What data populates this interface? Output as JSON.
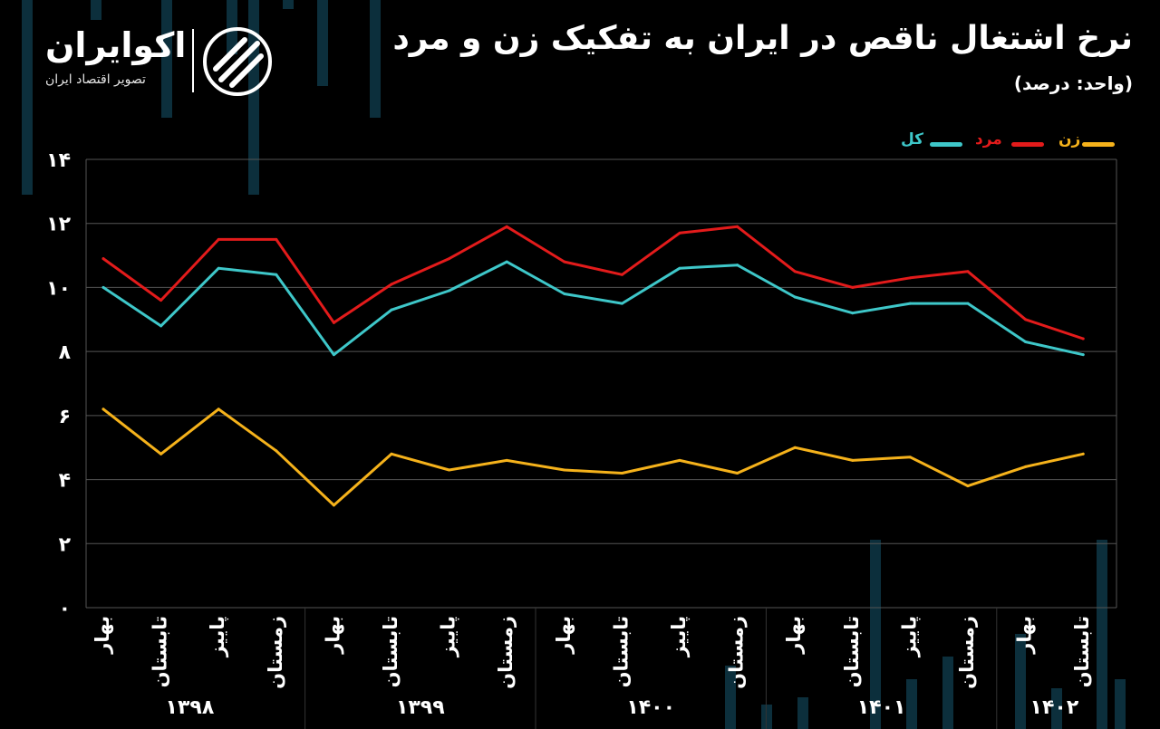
{
  "title": "نرخ اشتغال ناقص در ایران به تفکیک زن و مرد",
  "subtitle": "(واحد: درصد)",
  "brand": {
    "name": "اکوایران",
    "tagline": "تصویر اقتصاد ایران",
    "logo_icon": "ecoiran-logo-icon"
  },
  "colors": {
    "background": "#000000",
    "grid": "#555555",
    "text": "#ffffff",
    "men": "#e31b1b",
    "total": "#3ec7c9",
    "women": "#f5b21b",
    "decor_bars": "#0c2f3c"
  },
  "legend": [
    {
      "label": "کل",
      "color": "#3ec7c9"
    },
    {
      "label": "مرد",
      "color": "#e31b1b"
    },
    {
      "label": "زن",
      "color": "#f5b21b"
    }
  ],
  "chart_data": {
    "type": "line",
    "title": "نرخ اشتغال ناقص در ایران به تفکیک زن و مرد",
    "subtitle": "(واحد: درصد)",
    "ylim": [
      0,
      14
    ],
    "yticks": [
      0,
      2,
      4,
      6,
      8,
      10,
      12,
      14
    ],
    "ytick_labels": [
      "۰",
      "۲",
      "۴",
      "۶",
      "۸",
      "۱۰",
      "۱۲",
      "۱۴"
    ],
    "grid": true,
    "legend_position": "top-right",
    "categories": [
      "بهار",
      "تابستان",
      "پاییز",
      "زمستان",
      "بهار",
      "تابستان",
      "پاییز",
      "زمستان",
      "بهار",
      "تابستان",
      "پاییز",
      "زمستان",
      "بهار",
      "تابستان",
      "پاییز",
      "زمستان",
      "بهار",
      "تابستان"
    ],
    "groups": [
      {
        "label": "۱۳۹۸",
        "count": 4
      },
      {
        "label": "۱۳۹۹",
        "count": 4
      },
      {
        "label": "۱۴۰۰",
        "count": 4
      },
      {
        "label": "۱۴۰۱",
        "count": 4
      },
      {
        "label": "۱۴۰۲",
        "count": 2
      }
    ],
    "series": [
      {
        "name": "مرد",
        "color": "#e31b1b",
        "values": [
          10.9,
          9.6,
          11.5,
          11.5,
          8.9,
          10.1,
          10.9,
          11.9,
          10.8,
          10.4,
          11.7,
          11.9,
          10.5,
          10.0,
          10.3,
          10.5,
          9.0,
          8.4
        ]
      },
      {
        "name": "کل",
        "color": "#3ec7c9",
        "values": [
          10.0,
          8.8,
          10.6,
          10.4,
          7.9,
          9.3,
          9.9,
          10.8,
          9.8,
          9.5,
          10.6,
          10.7,
          9.7,
          9.2,
          9.5,
          9.5,
          8.3,
          7.9
        ]
      },
      {
        "name": "زن",
        "color": "#f5b21b",
        "values": [
          6.2,
          4.8,
          6.2,
          4.9,
          3.2,
          4.8,
          4.3,
          4.6,
          4.3,
          4.2,
          4.6,
          4.2,
          5.0,
          4.6,
          4.7,
          3.8,
          4.4,
          4.8
        ]
      }
    ]
  }
}
